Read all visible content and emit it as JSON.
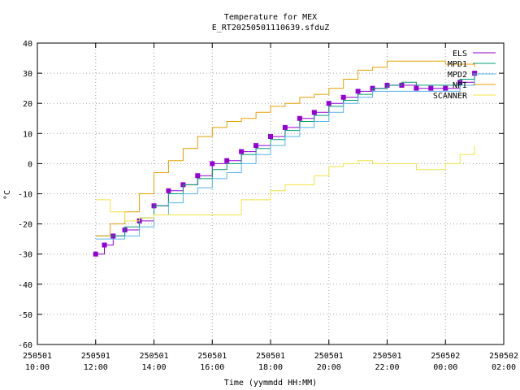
{
  "chart_data": {
    "type": "line",
    "title": "Temperature for MEX",
    "subtitle": "E_RT20250501110639.sfduZ",
    "xlabel": "Time (yymmdd HH:MM)",
    "ylabel": "°C",
    "x_ticks": [
      {
        "hour": 10,
        "date": "250501",
        "time": "10:00"
      },
      {
        "hour": 12,
        "date": "250501",
        "time": "12:00"
      },
      {
        "hour": 14,
        "date": "250501",
        "time": "14:00"
      },
      {
        "hour": 16,
        "date": "250501",
        "time": "16:00"
      },
      {
        "hour": 18,
        "date": "250501",
        "time": "18:00"
      },
      {
        "hour": 20,
        "date": "250501",
        "time": "20:00"
      },
      {
        "hour": 22,
        "date": "250501",
        "time": "22:00"
      },
      {
        "hour": 24,
        "date": "250502",
        "time": "00:00"
      },
      {
        "hour": 26,
        "date": "250502",
        "time": "02:00"
      }
    ],
    "xlim": [
      "250501 10:00",
      "250502 02:00"
    ],
    "ylim": [
      -60,
      40
    ],
    "yticks": [
      -60,
      -50,
      -40,
      -30,
      -20,
      -10,
      0,
      10,
      20,
      30,
      40
    ],
    "grid": true,
    "legend_position": "top-right",
    "series": [
      {
        "name": "ELS",
        "color": "#9400d3",
        "style": "thick",
        "points": [
          [
            12.0,
            -30
          ],
          [
            12.3,
            -27
          ],
          [
            12.6,
            -24
          ],
          [
            13.0,
            -22
          ],
          [
            13.5,
            -19
          ],
          [
            14.0,
            -14
          ],
          [
            14.5,
            -9
          ],
          [
            15.0,
            -7
          ],
          [
            15.5,
            -4
          ],
          [
            16.0,
            0
          ],
          [
            16.5,
            1
          ],
          [
            17.0,
            4
          ],
          [
            17.5,
            6
          ],
          [
            18.0,
            9
          ],
          [
            18.5,
            12
          ],
          [
            19.0,
            15
          ],
          [
            19.5,
            17
          ],
          [
            20.0,
            20
          ],
          [
            20.5,
            22
          ],
          [
            21.0,
            24
          ],
          [
            21.5,
            25
          ],
          [
            22.0,
            26
          ],
          [
            22.5,
            26
          ],
          [
            23.0,
            25
          ],
          [
            23.5,
            25
          ],
          [
            24.0,
            25
          ],
          [
            24.5,
            27
          ],
          [
            25.0,
            30
          ]
        ]
      },
      {
        "name": "MPD1",
        "color": "#009e73",
        "style": "thin",
        "points": [
          [
            12.0,
            -24
          ],
          [
            12.5,
            -24
          ],
          [
            13.0,
            -21
          ],
          [
            13.5,
            -18
          ],
          [
            14.0,
            -14
          ],
          [
            14.5,
            -10
          ],
          [
            15.0,
            -7
          ],
          [
            15.5,
            -5
          ],
          [
            16.0,
            -2
          ],
          [
            16.5,
            0
          ],
          [
            17.0,
            3
          ],
          [
            17.5,
            5
          ],
          [
            18.0,
            8
          ],
          [
            18.5,
            11
          ],
          [
            19.0,
            14
          ],
          [
            19.5,
            16
          ],
          [
            20.0,
            19
          ],
          [
            20.5,
            21
          ],
          [
            21.0,
            23
          ],
          [
            21.5,
            25
          ],
          [
            22.0,
            26
          ],
          [
            22.5,
            27
          ],
          [
            23.0,
            26
          ],
          [
            23.5,
            26
          ],
          [
            24.0,
            26
          ],
          [
            24.5,
            28
          ],
          [
            25.0,
            30
          ]
        ]
      },
      {
        "name": "MPD2",
        "color": "#56b4e9",
        "style": "thin",
        "points": [
          [
            12.0,
            -25
          ],
          [
            12.5,
            -25
          ],
          [
            13.0,
            -24
          ],
          [
            13.5,
            -21
          ],
          [
            14.0,
            -17
          ],
          [
            14.5,
            -13
          ],
          [
            15.0,
            -10
          ],
          [
            15.5,
            -8
          ],
          [
            16.0,
            -5
          ],
          [
            16.5,
            -3
          ],
          [
            17.0,
            0
          ],
          [
            17.5,
            3
          ],
          [
            18.0,
            6
          ],
          [
            18.5,
            9
          ],
          [
            19.0,
            12
          ],
          [
            19.5,
            14
          ],
          [
            20.0,
            17
          ],
          [
            20.5,
            20
          ],
          [
            21.0,
            22
          ],
          [
            21.5,
            24
          ],
          [
            22.0,
            24
          ],
          [
            22.5,
            24
          ],
          [
            23.0,
            24
          ],
          [
            23.5,
            24
          ],
          [
            24.0,
            24
          ],
          [
            24.5,
            26
          ],
          [
            25.0,
            28
          ]
        ]
      },
      {
        "name": "NPI",
        "color": "#e69f00",
        "style": "thin",
        "points": [
          [
            12.0,
            -24
          ],
          [
            12.5,
            -20
          ],
          [
            13.0,
            -16
          ],
          [
            13.5,
            -10
          ],
          [
            14.0,
            -3
          ],
          [
            14.5,
            1
          ],
          [
            15.0,
            5
          ],
          [
            15.5,
            9
          ],
          [
            16.0,
            12
          ],
          [
            16.5,
            14
          ],
          [
            17.0,
            15
          ],
          [
            17.5,
            17
          ],
          [
            18.0,
            19
          ],
          [
            18.5,
            20
          ],
          [
            19.0,
            22
          ],
          [
            19.5,
            23
          ],
          [
            20.0,
            25
          ],
          [
            20.5,
            28
          ],
          [
            21.0,
            31
          ],
          [
            21.5,
            32
          ],
          [
            22.0,
            34
          ],
          [
            22.5,
            34
          ],
          [
            23.0,
            34
          ],
          [
            23.5,
            34
          ],
          [
            24.0,
            33
          ],
          [
            24.5,
            33
          ],
          [
            25.0,
            32
          ]
        ]
      },
      {
        "name": "SCANNER",
        "color": "#f0e442",
        "style": "thin",
        "points": [
          [
            12.0,
            -12
          ],
          [
            12.5,
            -16
          ],
          [
            13.0,
            -19
          ],
          [
            13.5,
            -18
          ],
          [
            14.0,
            -17
          ],
          [
            14.5,
            -17
          ],
          [
            15.0,
            -17
          ],
          [
            15.5,
            -17
          ],
          [
            16.0,
            -17
          ],
          [
            16.5,
            -17
          ],
          [
            17.0,
            -12
          ],
          [
            17.5,
            -12
          ],
          [
            18.0,
            -9
          ],
          [
            18.5,
            -7
          ],
          [
            19.0,
            -7
          ],
          [
            19.5,
            -4
          ],
          [
            20.0,
            -1
          ],
          [
            20.5,
            0
          ],
          [
            21.0,
            1
          ],
          [
            21.5,
            0
          ],
          [
            22.0,
            0
          ],
          [
            22.5,
            0
          ],
          [
            23.0,
            -2
          ],
          [
            23.5,
            -2
          ],
          [
            24.0,
            0
          ],
          [
            24.5,
            3
          ],
          [
            25.0,
            6
          ]
        ]
      }
    ]
  }
}
